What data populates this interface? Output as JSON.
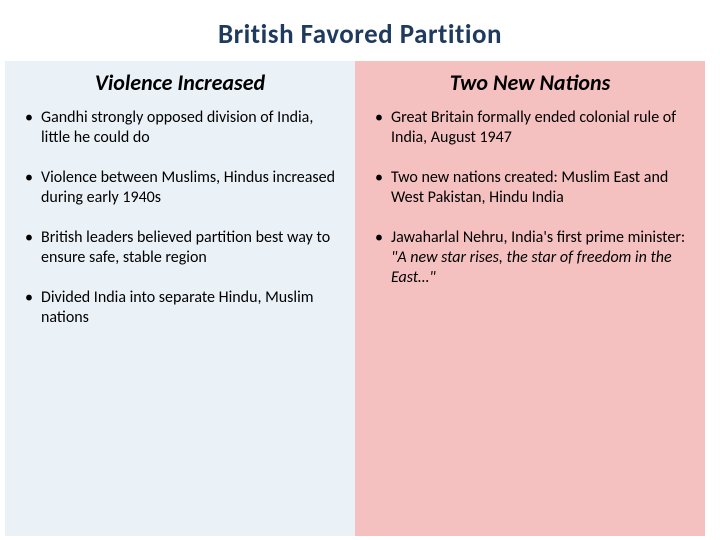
{
  "title": "British Favored Partition",
  "title_color": "#1f3a5f",
  "left": {
    "bg": "#eaf1f7",
    "heading": "Violence Increased",
    "bullets": [
      "Gandhi strongly opposed division of India, little he could do",
      "Violence between Muslims, Hindus increased during early 1940s",
      "British leaders believed partition best way to ensure safe, stable region",
      "Divided India into separate Hindu, Muslim nations"
    ]
  },
  "right": {
    "bg": "#f5c0c0",
    "heading": "Two New Nations",
    "bullets": [
      "Great Britain formally ended colonial rule of India, August 1947",
      "Two new nations created: Muslim East and West Pakistan, Hindu India"
    ],
    "bullet3_pre": "Jawaharlal Nehru, India's first prime minister: ",
    "bullet3_quote": "\"A new star rises, the star of freedom in the East…\""
  },
  "fontsize_title": 27,
  "fontsize_heading": 22,
  "fontsize_bullet": 16
}
